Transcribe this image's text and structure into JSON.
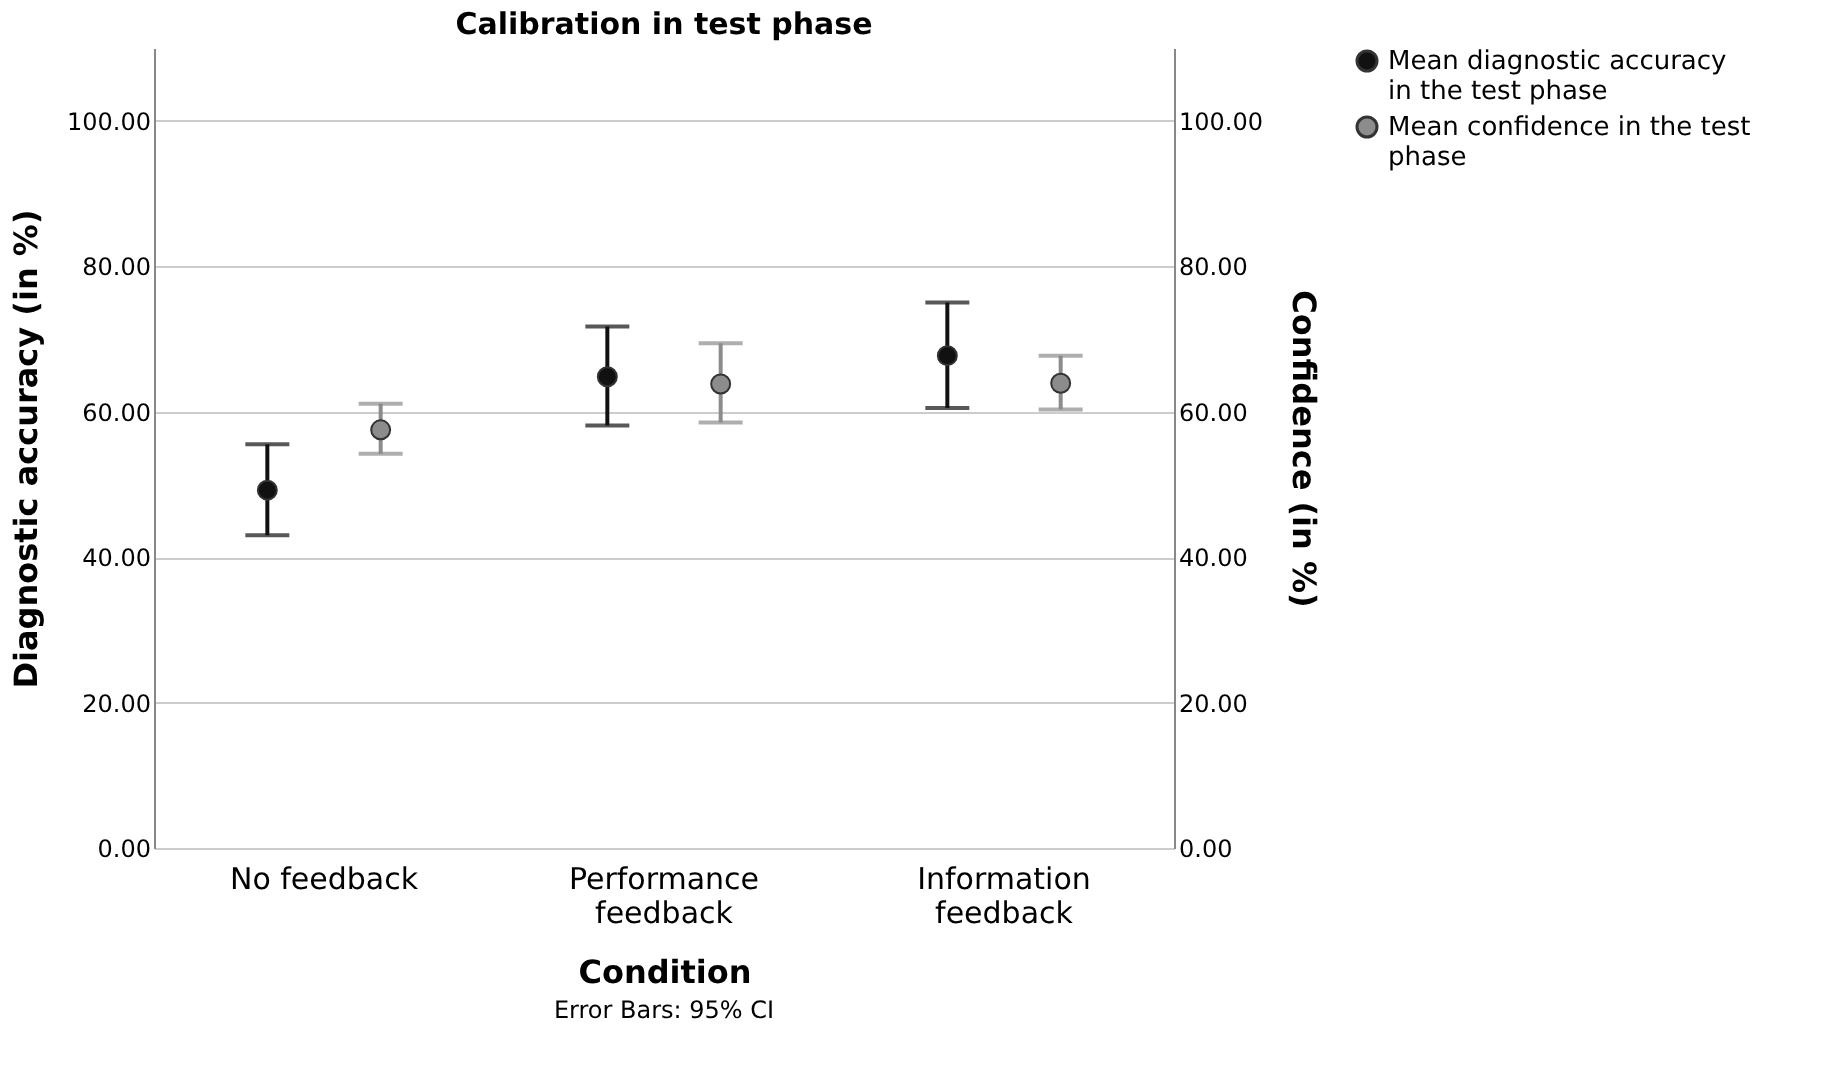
{
  "chart_data": {
    "type": "scatter",
    "title": "Calibration in test phase",
    "xlabel": "Condition",
    "ylabel": "Diagnostic accuracy (in %)",
    "y2label": "Confidence (in %)",
    "categories": [
      "No feedback",
      "Performance feedback",
      "Information feedback"
    ],
    "series": [
      {
        "name": "Mean diagnostic accuracy in the test phase",
        "color": "#111111",
        "values": [
          49.2,
          64.8,
          67.7
        ],
        "errors": [
          [
            43.0,
            55.5
          ],
          [
            58.1,
            71.7
          ],
          [
            60.5,
            75.0
          ]
        ]
      },
      {
        "name": "Mean confidence in the test phase",
        "color": "#8c8c8c",
        "axis": "y2",
        "values": [
          57.5,
          63.8,
          63.9
        ],
        "errors": [
          [
            54.2,
            61.1
          ],
          [
            58.5,
            69.4
          ],
          [
            60.3,
            67.7
          ]
        ]
      }
    ],
    "ylim": [
      0,
      110
    ],
    "yticks": [
      {
        "value": 0,
        "label": "0.00"
      },
      {
        "value": 20,
        "label": "20.00"
      },
      {
        "value": 40,
        "label": "40.00"
      },
      {
        "value": 60,
        "label": "60.00"
      },
      {
        "value": 80,
        "label": "80.00"
      },
      {
        "value": 100,
        "label": "100.00"
      }
    ],
    "y2lim": [
      0,
      110
    ],
    "y2ticks": [
      {
        "value": 0,
        "label": "0.00"
      },
      {
        "value": 20,
        "label": "20.00"
      },
      {
        "value": 40,
        "label": "40.00"
      },
      {
        "value": 60,
        "label": "60.00"
      },
      {
        "value": 80,
        "label": "80.00"
      },
      {
        "value": 100,
        "label": "100.00"
      }
    ],
    "grid": "y",
    "legend": "top right",
    "marker": "circle",
    "annotations": [
      "Error Bars: 95% CI"
    ]
  }
}
